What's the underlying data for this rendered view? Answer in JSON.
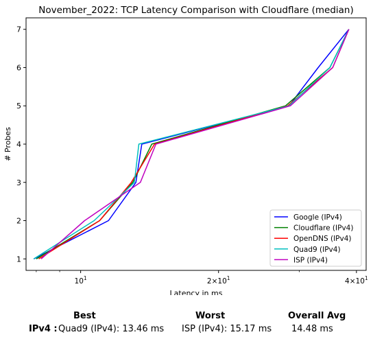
{
  "chart_data": {
    "type": "line",
    "title": "November_2022: TCP Latency Comparison with Cloudflare (median)",
    "xlabel": "Latency in ms",
    "ylabel": "# Probes",
    "xscale": "log",
    "xlim": [
      7.6,
      42
    ],
    "ylim": [
      0.7,
      7.3
    ],
    "x_ticks": [
      {
        "value": 10,
        "base": "10",
        "exp": "1"
      },
      {
        "value": 20,
        "base": "2×10",
        "exp": "1"
      },
      {
        "value": 40,
        "base": "4×10",
        "exp": "1"
      }
    ],
    "y_ticks": [
      1,
      2,
      3,
      4,
      5,
      6,
      7
    ],
    "grid": false,
    "legend_position": "lower right",
    "series": [
      {
        "name": "Google (IPv4)",
        "color": "#0000ff",
        "x": [
          7.9,
          11.5,
          13.2,
          13.6,
          28.5,
          33.0,
          38.5
        ],
        "y": [
          1,
          2,
          3,
          4,
          5,
          6,
          7
        ]
      },
      {
        "name": "Cloudflare (IPv4)",
        "color": "#008000",
        "x": [
          8.0,
          11.0,
          13.0,
          14.3,
          28.0,
          35.0,
          38.5
        ],
        "y": [
          1,
          2,
          3,
          4,
          5,
          6,
          7
        ]
      },
      {
        "name": "OpenDNS (IPv4)",
        "color": "#ff0000",
        "x": [
          8.1,
          11.0,
          12.9,
          14.5,
          28.3,
          35.5,
          38.5
        ],
        "y": [
          1,
          2,
          3,
          4,
          5,
          6,
          7
        ]
      },
      {
        "name": "Quad9 (IPv4)",
        "color": "#00bfbf",
        "x": [
          7.9,
          10.7,
          13.1,
          13.4,
          28.5,
          35.0,
          38.5
        ],
        "y": [
          1,
          2,
          3,
          4,
          5,
          6,
          7
        ]
      },
      {
        "name": "ISP (IPv4)",
        "color": "#bf00bf",
        "x": [
          8.2,
          10.2,
          13.5,
          14.6,
          28.7,
          35.5,
          38.5
        ],
        "y": [
          1,
          2,
          3,
          4,
          5,
          6,
          7
        ]
      }
    ]
  },
  "stats": {
    "best_label": "Best",
    "worst_label": "Worst",
    "avg_label": "Overall Avg",
    "row_label": "IPv4 :",
    "best_value": "Quad9 (IPv4): 13.46 ms",
    "worst_value": "ISP (IPv4): 15.17 ms",
    "avg_value": "14.48 ms"
  }
}
